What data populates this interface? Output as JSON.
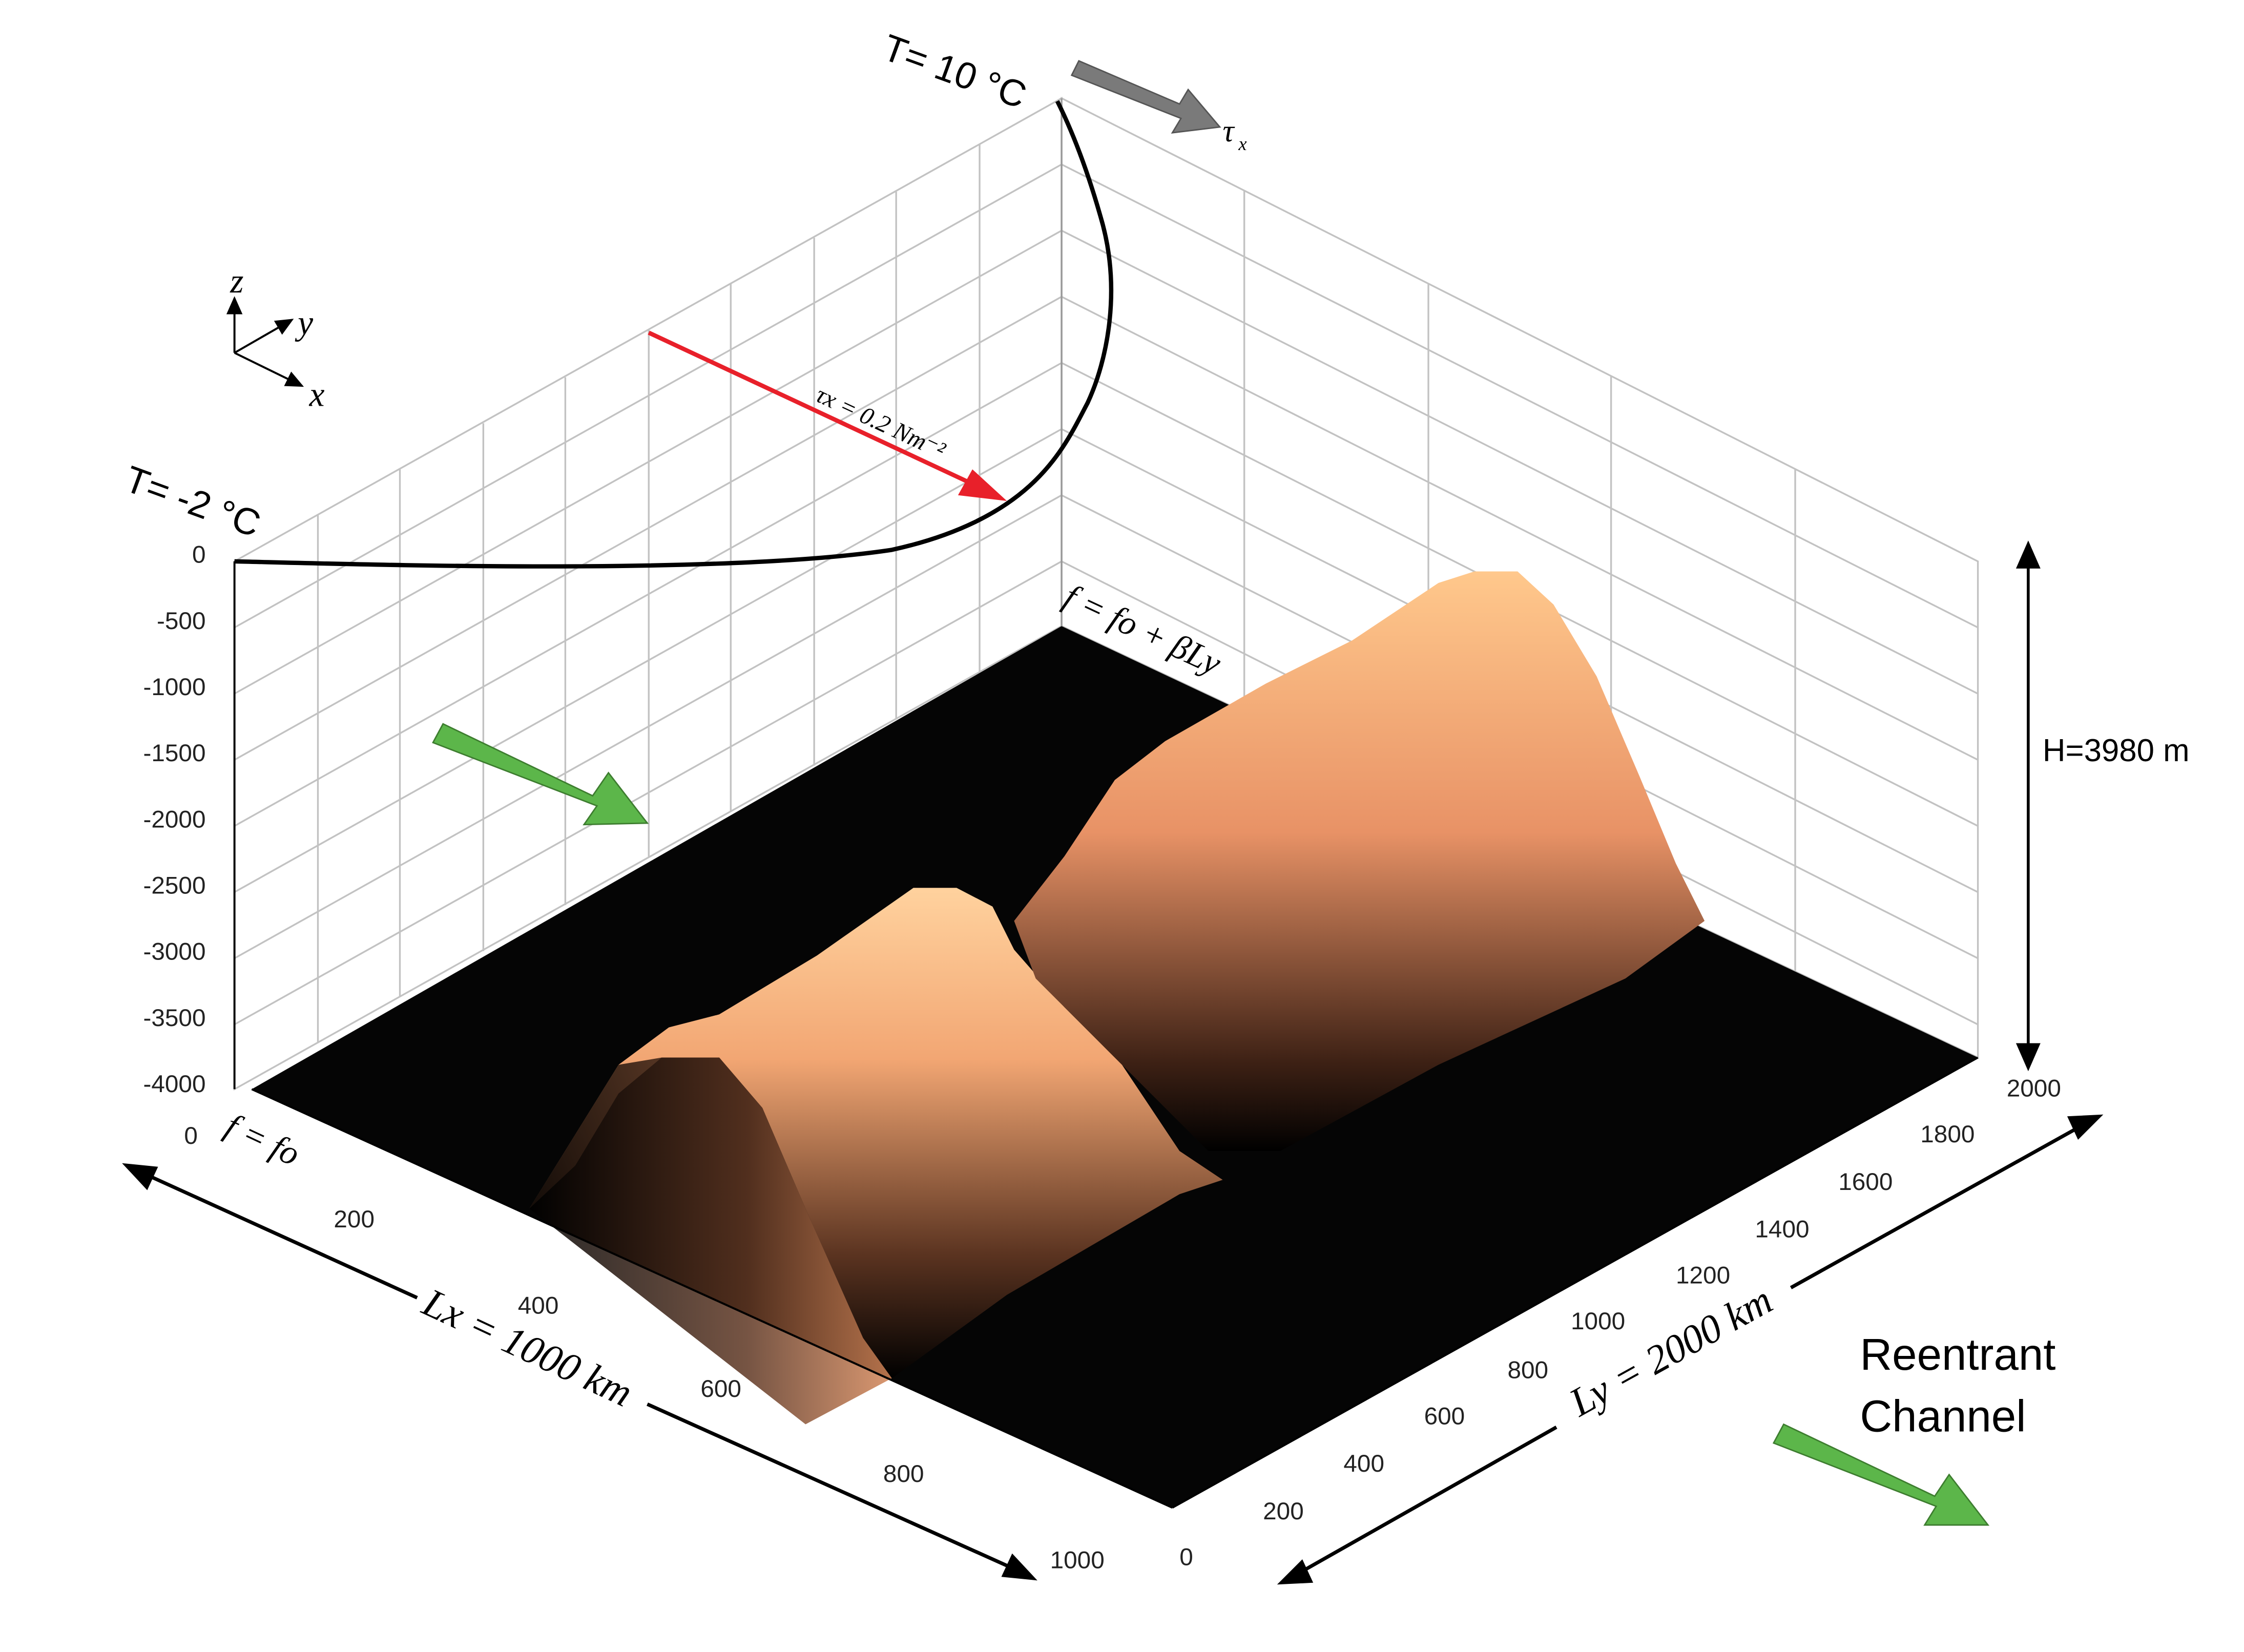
{
  "diagram": {
    "temp_top_label": "T= 10 °C",
    "temp_bottom_label": "T= -2 °C",
    "tau_label": "τ",
    "tau_sub": "x",
    "tau_stress_label": "τx = 0.2 Nm⁻²",
    "f_top_label": "f = fo + βLy",
    "f_bottom_label": "f = fo",
    "axis_z": "z",
    "axis_y": "y",
    "axis_x": "x",
    "height_label": "H=3980 m",
    "lx_label": "Lx = 1000 km",
    "ly_label": "Ly = 2000 km",
    "channel_line1": "Reentrant",
    "channel_line2": "Channel",
    "z_ticks": [
      "0",
      "-500",
      "-1000",
      "-1500",
      "-2000",
      "-2500",
      "-3000",
      "-3500",
      "-4000"
    ],
    "x_ticks": [
      "0",
      "200",
      "400",
      "600",
      "800",
      "1000"
    ],
    "y_ticks": [
      "0",
      "200",
      "400",
      "600",
      "800",
      "1000",
      "1200",
      "1400",
      "1600",
      "1800",
      "2000"
    ]
  },
  "colors": {
    "wind_arrow": "#7a7a7a",
    "stress_arrow": "#e8202a",
    "flow_arrow": "#5cb64a",
    "topo_light": "#f5b77a",
    "topo_dark": "#000000",
    "grid": "#bdbdbd"
  }
}
